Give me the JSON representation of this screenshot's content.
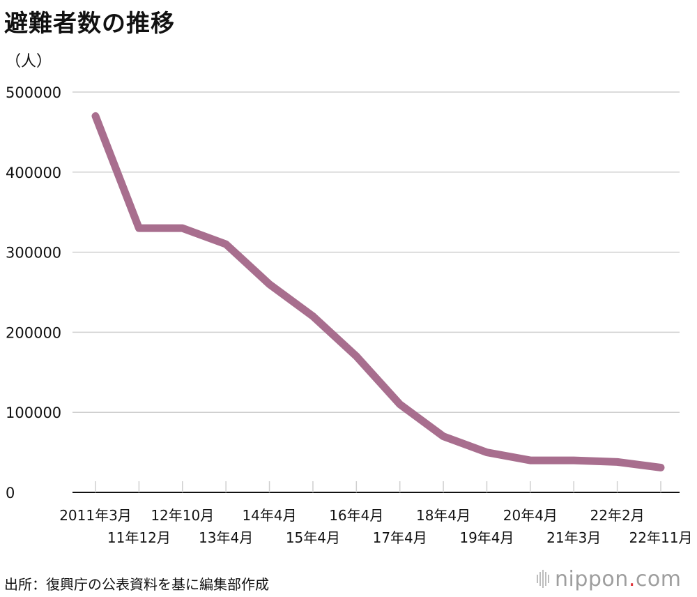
{
  "title": "避難者数の推移",
  "unit_label": "（人）",
  "source": "出所：復興庁の公表資料を基に編集部作成",
  "logo": {
    "name": "nippon",
    "dot": ".",
    "tld": "com"
  },
  "colors": {
    "line": "#a86e8e",
    "grid": "#cfcfcf",
    "axis": "#111111"
  },
  "chart_data": {
    "type": "line",
    "title": "避難者数の推移",
    "ylabel": "（人）",
    "xlabel": "",
    "ylim": [
      0,
      500000
    ],
    "yticks": [
      0,
      100000,
      200000,
      300000,
      400000,
      500000
    ],
    "grid": true,
    "categories": [
      "2011年3月",
      "11年12月",
      "12年10月",
      "13年4月",
      "14年4月",
      "15年4月",
      "16年4月",
      "17年4月",
      "18年4月",
      "19年4月",
      "20年4月",
      "21年3月",
      "22年2月",
      "22年11月"
    ],
    "series": [
      {
        "values": [
          470000,
          330000,
          330000,
          310000,
          260000,
          220000,
          170000,
          110000,
          70000,
          50000,
          40000,
          40000,
          38000,
          31000
        ]
      }
    ]
  }
}
